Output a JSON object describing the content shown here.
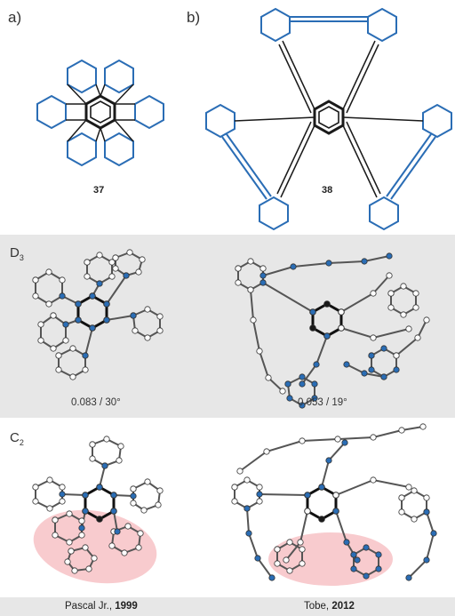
{
  "panels": {
    "a_label": "a)",
    "b_label": "b)"
  },
  "compounds": {
    "c37": "37",
    "c38": "38"
  },
  "sections": {
    "d3": {
      "symbol": "D",
      "subscript": "3",
      "left_value": "0.083 / 30°",
      "right_value": "0.053 / 19°"
    },
    "c2": {
      "symbol": "C",
      "subscript": "2"
    }
  },
  "citations": {
    "left_author": "Pascal Jr., ",
    "left_year": "1999",
    "right_author": "Tobe, ",
    "right_year": "2012"
  },
  "colors": {
    "blue": "#2a6db5",
    "black": "#1a1a1a",
    "band": "#e7e7e7",
    "highlight": "#f3a8ad"
  }
}
